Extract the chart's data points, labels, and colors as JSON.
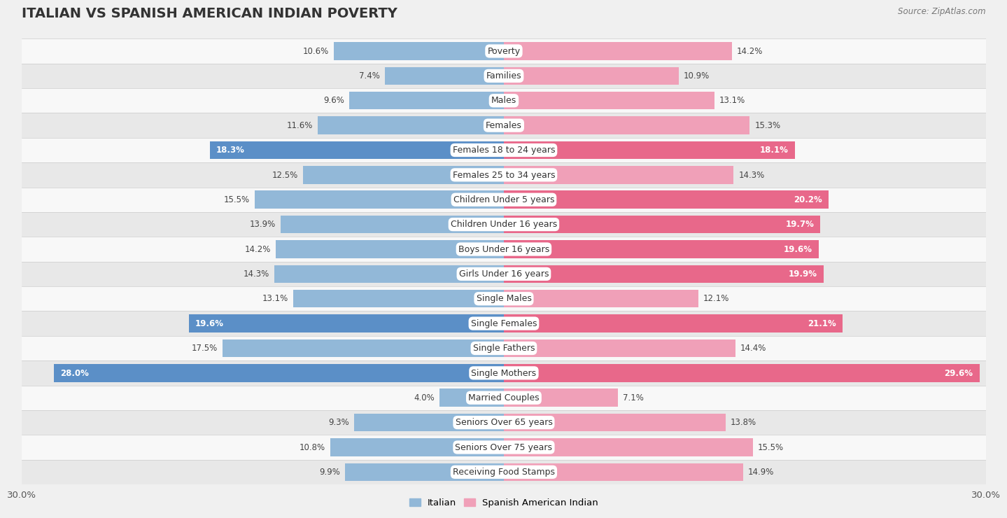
{
  "title": "ITALIAN VS SPANISH AMERICAN INDIAN POVERTY",
  "source": "Source: ZipAtlas.com",
  "categories": [
    "Poverty",
    "Families",
    "Males",
    "Females",
    "Females 18 to 24 years",
    "Females 25 to 34 years",
    "Children Under 5 years",
    "Children Under 16 years",
    "Boys Under 16 years",
    "Girls Under 16 years",
    "Single Males",
    "Single Females",
    "Single Fathers",
    "Single Mothers",
    "Married Couples",
    "Seniors Over 65 years",
    "Seniors Over 75 years",
    "Receiving Food Stamps"
  ],
  "italian_values": [
    10.6,
    7.4,
    9.6,
    11.6,
    18.3,
    12.5,
    15.5,
    13.9,
    14.2,
    14.3,
    13.1,
    19.6,
    17.5,
    28.0,
    4.0,
    9.3,
    10.8,
    9.9
  ],
  "spanish_values": [
    14.2,
    10.9,
    13.1,
    15.3,
    18.1,
    14.3,
    20.2,
    19.7,
    19.6,
    19.9,
    12.1,
    21.1,
    14.4,
    29.6,
    7.1,
    13.8,
    15.5,
    14.9
  ],
  "italian_color": "#92b8d8",
  "spanish_color": "#f0a0b8",
  "italian_color_highlight": "#5b8fc7",
  "spanish_color_highlight": "#e8688a",
  "highlight_threshold": 18.0,
  "bar_height": 0.72,
  "max_val": 30.0,
  "background_color": "#f0f0f0",
  "row_color_odd": "#f8f8f8",
  "row_color_even": "#e8e8e8",
  "legend_italian": "Italian",
  "legend_spanish": "Spanish American Indian",
  "x_axis_label_left": "30.0%",
  "x_axis_label_right": "30.0%",
  "title_fontsize": 14,
  "label_fontsize": 9,
  "value_fontsize": 8.5,
  "source_fontsize": 8.5
}
